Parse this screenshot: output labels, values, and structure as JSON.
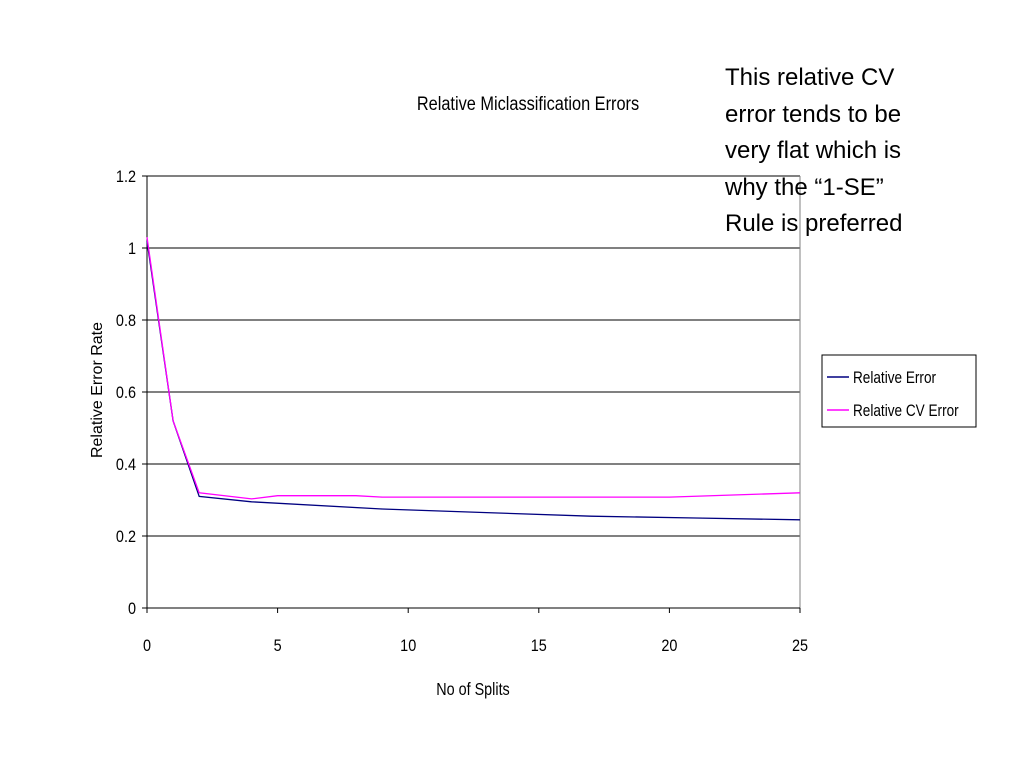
{
  "annotation": {
    "lines": [
      "This relative CV",
      "error tends to be",
      "very flat which is",
      "why the “1-SE”",
      "Rule is preferred"
    ]
  },
  "chart_data": {
    "type": "line",
    "title": "Relative Miclassification Errors",
    "xlabel": "No of Splits",
    "ylabel": "Relative Error Rate",
    "xlim": [
      0,
      25
    ],
    "ylim": [
      0,
      1.2
    ],
    "x_ticks": [
      0,
      5,
      10,
      15,
      20,
      25
    ],
    "x_tick_labels": [
      "0",
      "5",
      "10",
      "15",
      "20",
      "25"
    ],
    "y_ticks": [
      0,
      0.2,
      0.4,
      0.6,
      0.8,
      1,
      1.2
    ],
    "y_tick_labels": [
      "0",
      "0.2",
      "0.4",
      "0.6",
      "0.8",
      "1",
      "1.2"
    ],
    "grid": "horizontal",
    "legend_position": "right",
    "series": [
      {
        "name": "Relative  Error",
        "color": "#000080",
        "x": [
          0,
          1,
          2,
          4,
          9,
          13,
          17,
          21,
          25
        ],
        "y": [
          1.02,
          0.52,
          0.31,
          0.295,
          0.275,
          0.265,
          0.255,
          0.25,
          0.245
        ]
      },
      {
        "name": "Relative  CV Error",
        "color": "#ff00ff",
        "x": [
          0,
          1,
          2,
          4,
          5,
          8,
          9,
          20,
          25
        ],
        "y": [
          1.03,
          0.52,
          0.32,
          0.303,
          0.312,
          0.312,
          0.308,
          0.308,
          0.32
        ]
      }
    ]
  }
}
